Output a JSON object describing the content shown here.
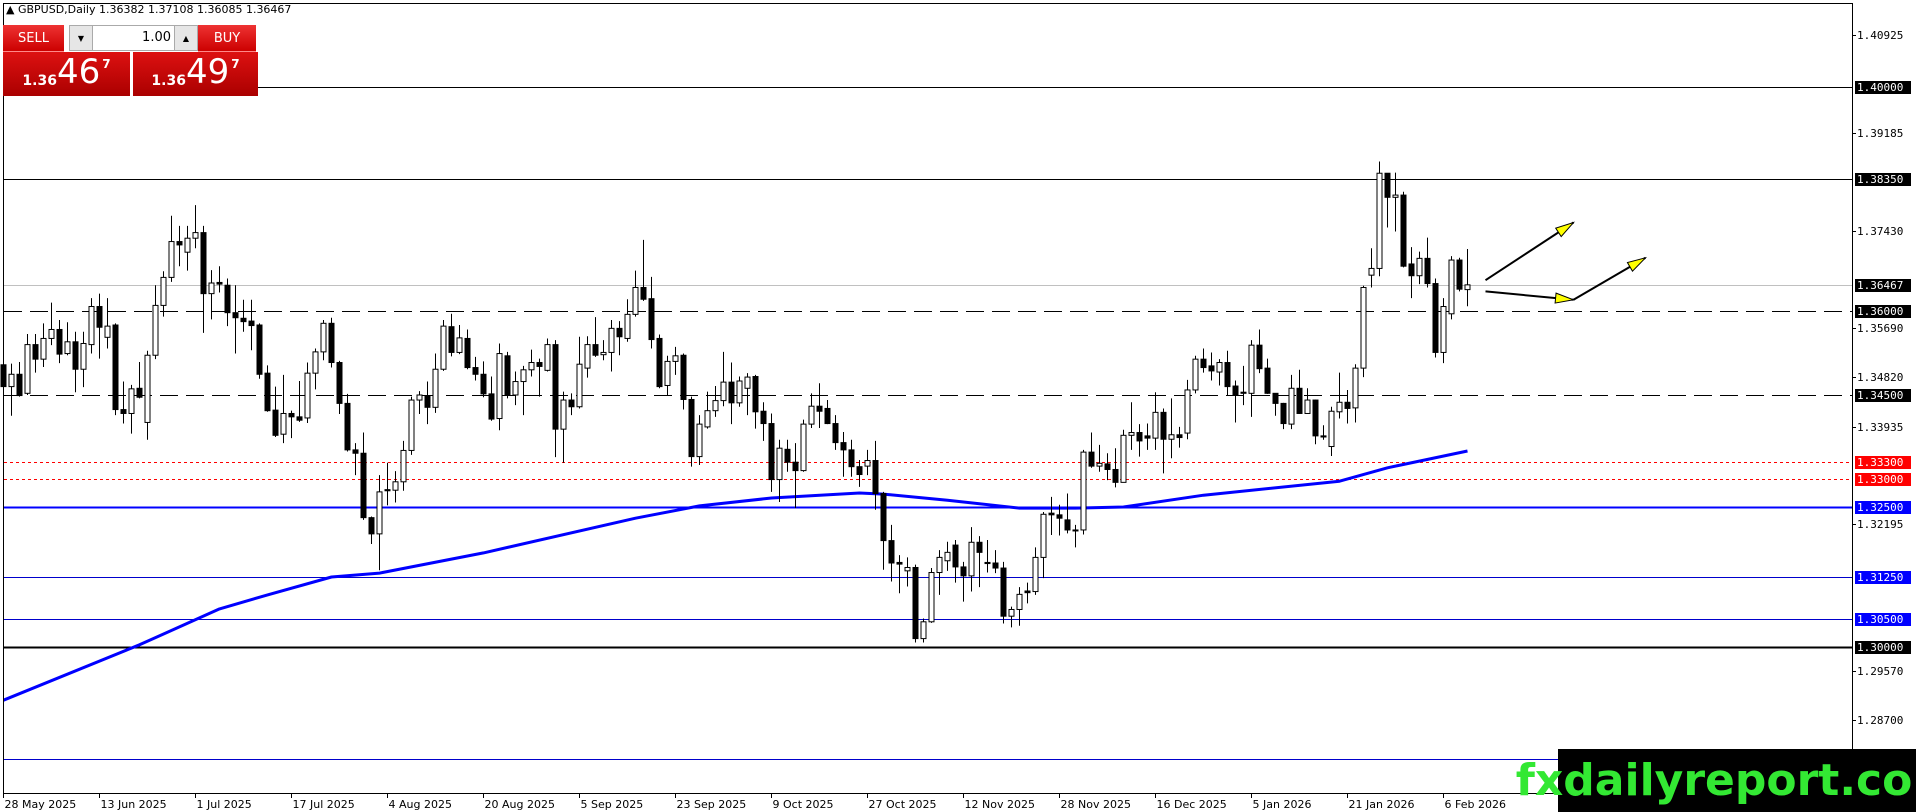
{
  "header": {
    "symbol_line": "▲ GBPUSD,Daily  1.36382 1.37108 1.36085 1.36467"
  },
  "trade_panel": {
    "sell_label": "SELL",
    "buy_label": "BUY",
    "lot_value": "1.00",
    "lot_down_icon": "triangle-down",
    "lot_up_icon": "triangle-up",
    "sell_price": {
      "prefix": "1.36",
      "main": "46",
      "pip": "7"
    },
    "buy_price": {
      "prefix": "1.36",
      "main": "49",
      "pip": "7"
    }
  },
  "watermark": "fxdailyreport.com",
  "colors": {
    "panel_red": "#cc0000",
    "ma_blue": "#0000ff",
    "level_red": "#ff0000",
    "watermark_green": "#33e833",
    "arrow_yellow": "#ffff00"
  },
  "chart_data": {
    "type": "candlestick",
    "symbol": "GBPUSD",
    "timeframe": "Daily",
    "ohlc_last": {
      "open": 1.36382,
      "high": 1.37108,
      "low": 1.36085,
      "close": 1.36467
    },
    "ylim": [
      1.2767,
      1.4157
    ],
    "y_ticks": [
      "1.40925",
      "1.39185",
      "1.37430",
      "1.35690",
      "1.34820",
      "1.33935",
      "1.32195",
      "1.29570",
      "1.28700"
    ],
    "x_ticks": [
      "28 May 2025",
      "13 Jun 2025",
      "1 Jul 2025",
      "17 Jul 2025",
      "4 Aug 2025",
      "20 Aug 2025",
      "5 Sep 2025",
      "23 Sep 2025",
      "9 Oct 2025",
      "27 Oct 2025",
      "12 Nov 2025",
      "28 Nov 2025",
      "16 Dec 2025",
      "5 Jan 2026",
      "21 Jan 2026",
      "6 Feb 2026"
    ],
    "x_tick_every_bars": 12,
    "levels": [
      {
        "price": 1.4,
        "label": "1.40000",
        "style": "solid",
        "color": "#000000",
        "tag_bg": "#000000"
      },
      {
        "price": 1.3835,
        "label": "1.38350",
        "style": "solid",
        "color": "#000000",
        "tag_bg": "#000000"
      },
      {
        "price": 1.36467,
        "label": "1.36467",
        "style": "bid",
        "color": "#c0c0c0",
        "tag_bg": "#000000"
      },
      {
        "price": 1.36,
        "label": "1.36000",
        "style": "dashed",
        "color": "#000000",
        "tag_bg": "#000000"
      },
      {
        "price": 1.345,
        "label": "1.34500",
        "style": "dashed",
        "color": "#000000",
        "tag_bg": "#000000"
      },
      {
        "price": 1.333,
        "label": "1.33300",
        "style": "dotted",
        "color": "#ff0000",
        "tag_bg": "#ff0000"
      },
      {
        "price": 1.33,
        "label": "1.33000",
        "style": "dotted",
        "color": "#ff0000",
        "tag_bg": "#ff0000"
      },
      {
        "price": 1.325,
        "label": "1.32500",
        "style": "thick",
        "color": "#0000ff",
        "tag_bg": "#0000ff"
      },
      {
        "price": 1.3125,
        "label": "1.31250",
        "style": "solid",
        "color": "#0000cc",
        "tag_bg": "#0000ff"
      },
      {
        "price": 1.305,
        "label": "1.30500",
        "style": "solid",
        "color": "#0000cc",
        "tag_bg": "#0000ff"
      },
      {
        "price": 1.3,
        "label": "1.30000",
        "style": "thick",
        "color": "#000000",
        "tag_bg": "#000000"
      },
      {
        "price": 1.28,
        "label": "",
        "style": "solid",
        "color": "#0000cc",
        "tag_bg": ""
      }
    ],
    "moving_average": [
      [
        0,
        1.2905
      ],
      [
        17,
        1.3004
      ],
      [
        27,
        1.3068
      ],
      [
        33,
        1.3093
      ],
      [
        41,
        1.3125
      ],
      [
        47,
        1.3132
      ],
      [
        60,
        1.3168
      ],
      [
        79,
        1.323
      ],
      [
        87,
        1.3252
      ],
      [
        96,
        1.3266
      ],
      [
        107,
        1.3275
      ],
      [
        110,
        1.3273
      ],
      [
        118,
        1.3262
      ],
      [
        127,
        1.3248
      ],
      [
        134,
        1.3248
      ],
      [
        140,
        1.325
      ],
      [
        150,
        1.3271
      ],
      [
        167,
        1.3296
      ],
      [
        173,
        1.332
      ],
      [
        183,
        1.335
      ]
    ],
    "candles": [
      [
        1.3504,
        1.3518,
        1.345,
        1.3465
      ],
      [
        1.3465,
        1.3506,
        1.3413,
        1.3487
      ],
      [
        1.3487,
        1.3509,
        1.3447,
        1.3449
      ],
      [
        1.3453,
        1.3559,
        1.345,
        1.354
      ],
      [
        1.354,
        1.3559,
        1.349,
        1.3514
      ],
      [
        1.3514,
        1.3578,
        1.35,
        1.3551
      ],
      [
        1.3551,
        1.3615,
        1.3539,
        1.3567
      ],
      [
        1.3567,
        1.3584,
        1.3507,
        1.3523
      ],
      [
        1.3524,
        1.358,
        1.3521,
        1.3545
      ],
      [
        1.3545,
        1.3563,
        1.3455,
        1.3496
      ],
      [
        1.3496,
        1.3563,
        1.3464,
        1.3542
      ],
      [
        1.354,
        1.3623,
        1.3524,
        1.3608
      ],
      [
        1.3608,
        1.3631,
        1.3515,
        1.3571
      ],
      [
        1.3553,
        1.3623,
        1.3533,
        1.3573
      ],
      [
        1.3575,
        1.3578,
        1.3414,
        1.3424
      ],
      [
        1.3424,
        1.3474,
        1.3399,
        1.3417
      ],
      [
        1.3417,
        1.3468,
        1.3381,
        1.3461
      ],
      [
        1.3462,
        1.3509,
        1.3444,
        1.3446
      ],
      [
        1.3401,
        1.3529,
        1.337,
        1.3521
      ],
      [
        1.3521,
        1.3646,
        1.3514,
        1.361
      ],
      [
        1.361,
        1.3671,
        1.359,
        1.366
      ],
      [
        1.366,
        1.377,
        1.3652,
        1.3724
      ],
      [
        1.3724,
        1.3752,
        1.368,
        1.3718
      ],
      [
        1.3705,
        1.3752,
        1.3672,
        1.373
      ],
      [
        1.373,
        1.3789,
        1.3712,
        1.374
      ],
      [
        1.374,
        1.3752,
        1.3561,
        1.3631
      ],
      [
        1.3631,
        1.3673,
        1.3585,
        1.365
      ],
      [
        1.3651,
        1.368,
        1.3633,
        1.3648
      ],
      [
        1.3646,
        1.3658,
        1.3573,
        1.3597
      ],
      [
        1.3597,
        1.3646,
        1.3524,
        1.3588
      ],
      [
        1.3587,
        1.362,
        1.3563,
        1.3581
      ],
      [
        1.3582,
        1.362,
        1.353,
        1.3574
      ],
      [
        1.3575,
        1.3578,
        1.3479,
        1.3487
      ],
      [
        1.3489,
        1.3503,
        1.342,
        1.3422
      ],
      [
        1.3423,
        1.3465,
        1.3375,
        1.3378
      ],
      [
        1.338,
        1.3486,
        1.3364,
        1.3417
      ],
      [
        1.3417,
        1.3422,
        1.3373,
        1.3411
      ],
      [
        1.3411,
        1.3475,
        1.3402,
        1.3405
      ],
      [
        1.3409,
        1.3508,
        1.34,
        1.3489
      ],
      [
        1.3489,
        1.3533,
        1.346,
        1.3527
      ],
      [
        1.3527,
        1.3584,
        1.3512,
        1.3578
      ],
      [
        1.3578,
        1.3588,
        1.3499,
        1.3508
      ],
      [
        1.3508,
        1.3511,
        1.3416,
        1.3435
      ],
      [
        1.3435,
        1.3452,
        1.3349,
        1.3352
      ],
      [
        1.3352,
        1.3364,
        1.3307,
        1.3346
      ],
      [
        1.3346,
        1.3383,
        1.3227,
        1.3231
      ],
      [
        1.3231,
        1.3233,
        1.3184,
        1.3202
      ],
      [
        1.3202,
        1.3307,
        1.3137,
        1.3277
      ],
      [
        1.3281,
        1.3329,
        1.3253,
        1.3279
      ],
      [
        1.328,
        1.3314,
        1.3258,
        1.3295
      ],
      [
        1.3295,
        1.3368,
        1.3279,
        1.3351
      ],
      [
        1.3351,
        1.3447,
        1.3343,
        1.3441
      ],
      [
        1.3441,
        1.3457,
        1.3416,
        1.345
      ],
      [
        1.3448,
        1.3474,
        1.3398,
        1.3428
      ],
      [
        1.3428,
        1.3524,
        1.3418,
        1.3496
      ],
      [
        1.3496,
        1.3584,
        1.3493,
        1.3573
      ],
      [
        1.3572,
        1.3595,
        1.3519,
        1.3526
      ],
      [
        1.3526,
        1.3575,
        1.3523,
        1.3552
      ],
      [
        1.3551,
        1.3567,
        1.3496,
        1.3499
      ],
      [
        1.3499,
        1.3518,
        1.3476,
        1.3487
      ],
      [
        1.3487,
        1.351,
        1.3446,
        1.3452
      ],
      [
        1.3452,
        1.3483,
        1.3404,
        1.3407
      ],
      [
        1.3408,
        1.3542,
        1.3387,
        1.3524
      ],
      [
        1.352,
        1.3527,
        1.3444,
        1.345
      ],
      [
        1.345,
        1.3492,
        1.3432,
        1.3474
      ],
      [
        1.3474,
        1.3502,
        1.3414,
        1.3495
      ],
      [
        1.3495,
        1.3531,
        1.3483,
        1.3508
      ],
      [
        1.3508,
        1.3515,
        1.3447,
        1.3501
      ],
      [
        1.3494,
        1.3551,
        1.3492,
        1.354
      ],
      [
        1.354,
        1.3548,
        1.3339,
        1.3389
      ],
      [
        1.3389,
        1.3456,
        1.3329,
        1.3441
      ],
      [
        1.3441,
        1.3453,
        1.3414,
        1.3429
      ],
      [
        1.3429,
        1.3554,
        1.3426,
        1.3505
      ],
      [
        1.3498,
        1.3555,
        1.3481,
        1.354
      ],
      [
        1.354,
        1.3589,
        1.3518,
        1.3521
      ],
      [
        1.3522,
        1.3548,
        1.3512,
        1.3526
      ],
      [
        1.3526,
        1.3584,
        1.3492,
        1.3569
      ],
      [
        1.3569,
        1.3582,
        1.3521,
        1.3554
      ],
      [
        1.3551,
        1.3621,
        1.3545,
        1.3594
      ],
      [
        1.3594,
        1.3672,
        1.359,
        1.3642
      ],
      [
        1.3642,
        1.3727,
        1.3618,
        1.3621
      ],
      [
        1.3622,
        1.3661,
        1.3533,
        1.3549
      ],
      [
        1.3551,
        1.3558,
        1.3462,
        1.3465
      ],
      [
        1.3467,
        1.352,
        1.345,
        1.351
      ],
      [
        1.351,
        1.3536,
        1.3486,
        1.352
      ],
      [
        1.3521,
        1.3524,
        1.3424,
        1.3442
      ],
      [
        1.3442,
        1.3447,
        1.3322,
        1.334
      ],
      [
        1.334,
        1.3414,
        1.3325,
        1.3398
      ],
      [
        1.3393,
        1.3456,
        1.339,
        1.3422
      ],
      [
        1.3422,
        1.3466,
        1.3411,
        1.344
      ],
      [
        1.344,
        1.3527,
        1.343,
        1.3473
      ],
      [
        1.3473,
        1.3508,
        1.3398,
        1.3436
      ],
      [
        1.3436,
        1.3483,
        1.3429,
        1.3475
      ],
      [
        1.3462,
        1.3489,
        1.3414,
        1.3482
      ],
      [
        1.3483,
        1.3486,
        1.339,
        1.342
      ],
      [
        1.3421,
        1.3437,
        1.3368,
        1.3399
      ],
      [
        1.3399,
        1.3417,
        1.3277,
        1.3299
      ],
      [
        1.3299,
        1.337,
        1.3259,
        1.3355
      ],
      [
        1.3353,
        1.337,
        1.3313,
        1.333
      ],
      [
        1.333,
        1.3364,
        1.3248,
        1.3315
      ],
      [
        1.3315,
        1.3406,
        1.3313,
        1.3398
      ],
      [
        1.3398,
        1.3453,
        1.3391,
        1.343
      ],
      [
        1.343,
        1.3471,
        1.3391,
        1.3421
      ],
      [
        1.3426,
        1.3441,
        1.3398,
        1.3399
      ],
      [
        1.3399,
        1.3414,
        1.3352,
        1.3365
      ],
      [
        1.3365,
        1.3384,
        1.3304,
        1.3352
      ],
      [
        1.3352,
        1.337,
        1.3304,
        1.3322
      ],
      [
        1.3322,
        1.3334,
        1.3286,
        1.3308
      ],
      [
        1.3323,
        1.3352,
        1.3307,
        1.3333
      ],
      [
        1.3333,
        1.3368,
        1.3245,
        1.3274
      ],
      [
        1.3274,
        1.3277,
        1.3138,
        1.319
      ],
      [
        1.319,
        1.3218,
        1.3117,
        1.315
      ],
      [
        1.3151,
        1.3164,
        1.3096,
        1.3148
      ],
      [
        1.3136,
        1.316,
        1.3108,
        1.3142
      ],
      [
        1.3142,
        1.3147,
        1.3008,
        1.3015
      ],
      [
        1.3015,
        1.3051,
        1.3008,
        1.3045
      ],
      [
        1.3045,
        1.3141,
        1.3043,
        1.3133
      ],
      [
        1.3133,
        1.3173,
        1.3093,
        1.316
      ],
      [
        1.3154,
        1.3188,
        1.3136,
        1.3169
      ],
      [
        1.3182,
        1.3191,
        1.3115,
        1.3143
      ],
      [
        1.3143,
        1.3152,
        1.3081,
        1.3127
      ],
      [
        1.3127,
        1.3214,
        1.3099,
        1.3187
      ],
      [
        1.3187,
        1.3198,
        1.3107,
        1.3169
      ],
      [
        1.3151,
        1.3191,
        1.3133,
        1.3149
      ],
      [
        1.315,
        1.3173,
        1.3132,
        1.3141
      ],
      [
        1.3141,
        1.3152,
        1.3042,
        1.3055
      ],
      [
        1.3055,
        1.3072,
        1.3035,
        1.3067
      ],
      [
        1.3067,
        1.3107,
        1.3038,
        1.3094
      ],
      [
        1.31,
        1.3115,
        1.3078,
        1.3097
      ],
      [
        1.3099,
        1.3178,
        1.3093,
        1.316
      ],
      [
        1.316,
        1.3241,
        1.3123,
        1.3237
      ],
      [
        1.3239,
        1.3268,
        1.32,
        1.3236
      ],
      [
        1.3236,
        1.3254,
        1.3199,
        1.323
      ],
      [
        1.3227,
        1.3274,
        1.3203,
        1.3209
      ],
      [
        1.3209,
        1.3218,
        1.3178,
        1.3209
      ],
      [
        1.3209,
        1.3352,
        1.3201,
        1.3348
      ],
      [
        1.3348,
        1.3383,
        1.332,
        1.3323
      ],
      [
        1.3323,
        1.3361,
        1.3313,
        1.3328
      ],
      [
        1.3327,
        1.3346,
        1.3298,
        1.3317
      ],
      [
        1.3317,
        1.3355,
        1.3285,
        1.3294
      ],
      [
        1.3294,
        1.3388,
        1.3294,
        1.3378
      ],
      [
        1.3378,
        1.3437,
        1.3352,
        1.3383
      ],
      [
        1.3383,
        1.3398,
        1.334,
        1.3368
      ],
      [
        1.3377,
        1.3399,
        1.3352,
        1.3373
      ],
      [
        1.3373,
        1.3455,
        1.3352,
        1.3419
      ],
      [
        1.3419,
        1.3426,
        1.331,
        1.3371
      ],
      [
        1.3371,
        1.3444,
        1.3337,
        1.3379
      ],
      [
        1.3379,
        1.3393,
        1.3356,
        1.3374
      ],
      [
        1.3382,
        1.3477,
        1.3371,
        1.3459
      ],
      [
        1.3459,
        1.352,
        1.3453,
        1.3514
      ],
      [
        1.3514,
        1.3533,
        1.349,
        1.3499
      ],
      [
        1.3502,
        1.3526,
        1.3476,
        1.3493
      ],
      [
        1.3491,
        1.3514,
        1.3467,
        1.3508
      ],
      [
        1.3508,
        1.3529,
        1.345,
        1.3465
      ],
      [
        1.3466,
        1.3476,
        1.3401,
        1.345
      ],
      [
        1.3455,
        1.3502,
        1.3432,
        1.3453
      ],
      [
        1.3453,
        1.3548,
        1.3411,
        1.3539
      ],
      [
        1.3539,
        1.3567,
        1.3489,
        1.3497
      ],
      [
        1.3498,
        1.3515,
        1.3452,
        1.3453
      ],
      [
        1.3453,
        1.3453,
        1.3413,
        1.3435
      ],
      [
        1.3435,
        1.3436,
        1.3389,
        1.3399
      ],
      [
        1.3398,
        1.3486,
        1.3389,
        1.3462
      ],
      [
        1.3462,
        1.3495,
        1.3416,
        1.3417
      ],
      [
        1.3417,
        1.3462,
        1.3416,
        1.3441
      ],
      [
        1.3441,
        1.3442,
        1.3362,
        1.3377
      ],
      [
        1.3377,
        1.3396,
        1.337,
        1.3375
      ],
      [
        1.3358,
        1.3429,
        1.3341,
        1.3421
      ],
      [
        1.342,
        1.349,
        1.3408,
        1.3437
      ],
      [
        1.3437,
        1.3459,
        1.3399,
        1.3426
      ],
      [
        1.3427,
        1.3505,
        1.3401,
        1.3498
      ],
      [
        1.3498,
        1.3645,
        1.3482,
        1.3642
      ],
      [
        1.3664,
        1.3712,
        1.3642,
        1.3676
      ],
      [
        1.3676,
        1.3867,
        1.3662,
        1.3846
      ],
      [
        1.3846,
        1.3846,
        1.3749,
        1.3803
      ],
      [
        1.3803,
        1.3847,
        1.3742,
        1.3807
      ],
      [
        1.3807,
        1.3813,
        1.3678,
        1.368
      ],
      [
        1.3684,
        1.3714,
        1.3623,
        1.3663
      ],
      [
        1.3663,
        1.3706,
        1.3648,
        1.3694
      ],
      [
        1.3694,
        1.3731,
        1.3642,
        1.3649
      ],
      [
        1.3649,
        1.3658,
        1.3517,
        1.3526
      ],
      [
        1.3526,
        1.3623,
        1.3507,
        1.3608
      ],
      [
        1.3595,
        1.3698,
        1.3585,
        1.3691
      ],
      [
        1.3691,
        1.3695,
        1.3635,
        1.3639
      ],
      [
        1.36382,
        1.37108,
        1.36085,
        1.36467
      ]
    ],
    "annotations": [
      {
        "type": "arrow",
        "from": [
          183,
          1.3655
        ],
        "to": [
          194,
          1.3758
        ],
        "head_color": "#ffff00"
      },
      {
        "type": "arrow",
        "from": [
          183,
          1.3635
        ],
        "to": [
          194,
          1.362
        ],
        "head_color": "#ffff00"
      },
      {
        "type": "arrow",
        "from": [
          194,
          1.362
        ],
        "to": [
          203,
          1.3695
        ],
        "head_color": "#ffff00"
      }
    ]
  }
}
